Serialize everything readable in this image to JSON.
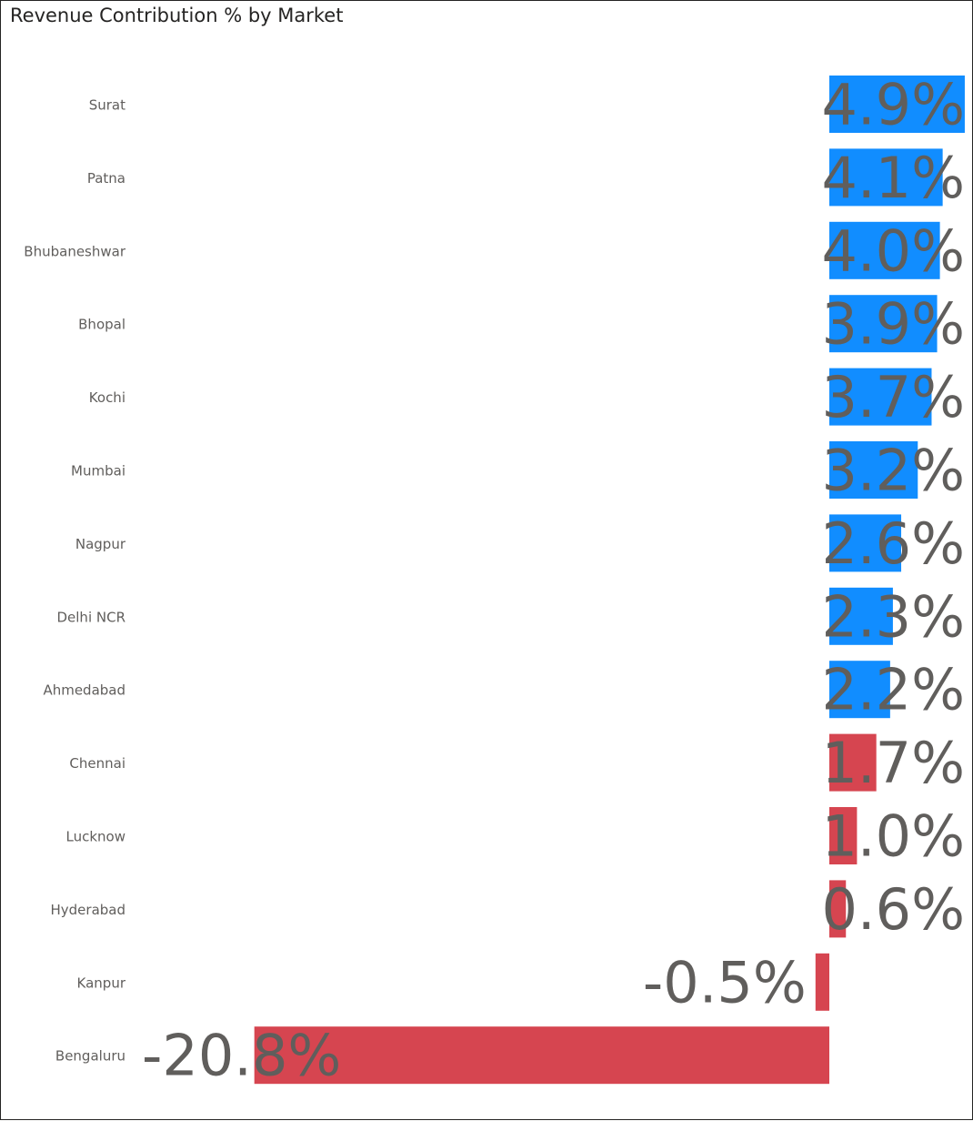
{
  "chart_data": {
    "type": "bar",
    "orientation": "horizontal",
    "title": "Revenue Contribution % by Market",
    "categories": [
      "Surat",
      "Patna",
      "Bhubaneshwar",
      "Bhopal",
      "Kochi",
      "Mumbai",
      "Nagpur",
      "Delhi NCR",
      "Ahmedabad",
      "Chennai",
      "Lucknow",
      "Hyderabad",
      "Kanpur",
      "Bengaluru"
    ],
    "values": [
      4.9,
      4.1,
      4.0,
      3.9,
      3.7,
      3.2,
      2.6,
      2.3,
      2.2,
      1.7,
      1.0,
      0.6,
      -0.5,
      -20.8
    ],
    "data_labels": [
      "4.9%",
      "4.1%",
      "4.0%",
      "3.9%",
      "3.7%",
      "3.2%",
      "2.6%",
      "2.3%",
      "2.2%",
      "1.7%",
      "1.0%",
      "0.6%",
      "-0.5%",
      "-20.8%"
    ],
    "bar_colors": [
      "#118dff",
      "#118dff",
      "#118dff",
      "#118dff",
      "#118dff",
      "#118dff",
      "#118dff",
      "#118dff",
      "#118dff",
      "#d64550",
      "#d64550",
      "#d64550",
      "#d64550",
      "#d64550"
    ],
    "xlabel": "",
    "ylabel": "",
    "xlim": [
      -20.8,
      4.9
    ],
    "grid": false,
    "legend": "none"
  }
}
